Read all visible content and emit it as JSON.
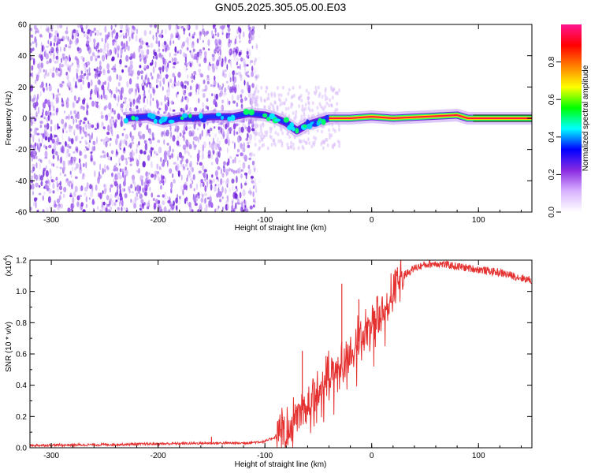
{
  "title": "GN05.2025.305.05.00.E03",
  "chart_data": [
    {
      "type": "heatmap",
      "xlabel": "Height of straight line (km)",
      "ylabel": "Frequency (Hz)",
      "xlim": [
        -320,
        150
      ],
      "ylim": [
        -60,
        60
      ],
      "x_ticks": [
        -300,
        -200,
        -100,
        0,
        100
      ],
      "y_ticks": [
        -60,
        -40,
        -20,
        0,
        20,
        40,
        60
      ],
      "ridge": {
        "x": [
          -230,
          -210,
          -195,
          -180,
          -165,
          -150,
          -130,
          -115,
          -100,
          -90,
          -80,
          -70,
          -60,
          -50,
          -40,
          -20,
          0,
          20,
          50,
          80,
          90,
          100,
          150
        ],
        "y": [
          0,
          1,
          -2,
          0,
          0,
          1,
          1,
          3,
          2,
          0,
          -3,
          -8,
          -4,
          -2,
          0,
          0,
          1,
          0,
          1,
          2,
          0,
          0,
          0
        ]
      },
      "colorbar": {
        "label": "Normalized spectral amplitude",
        "range": [
          0.0,
          1.0
        ],
        "ticks": [
          "0.0",
          "0.2",
          "0.4",
          "0.6",
          "0.8"
        ],
        "colormap": [
          "#ffffff",
          "#d9b3ff",
          "#8a2be2",
          "#0000ff",
          "#00ffff",
          "#00ff00",
          "#ffff00",
          "#ff8000",
          "#ff0000",
          "#ff1493"
        ]
      }
    },
    {
      "type": "line",
      "xlabel": "Height of straight line (km)",
      "ylabel": "SNR (10 * v/v)",
      "y_exponent_label": "(x10",
      "y_exponent_value": "4",
      "y_exponent_close": ")",
      "xlim": [
        -320,
        150
      ],
      "ylim": [
        0.0,
        1.2
      ],
      "x_ticks": [
        -300,
        -200,
        -100,
        0,
        100
      ],
      "y_ticks": [
        "0.0",
        "0.2",
        "0.4",
        "0.6",
        "0.8",
        "1.0",
        "1.2"
      ],
      "color": "#e53030",
      "series": [
        {
          "x": [
            -320,
            -250,
            -200,
            -150,
            -120,
            -100,
            -90,
            -80,
            -70,
            -60,
            -50,
            -40,
            -30,
            -20,
            -10,
            0,
            10,
            20,
            30,
            40,
            50,
            60,
            70,
            80,
            90,
            100,
            120,
            150
          ],
          "y": [
            0.015,
            0.02,
            0.025,
            0.03,
            0.03,
            0.04,
            0.07,
            0.12,
            0.2,
            0.28,
            0.38,
            0.45,
            0.52,
            0.6,
            0.7,
            0.78,
            0.88,
            1.0,
            1.1,
            1.15,
            1.17,
            1.18,
            1.17,
            1.16,
            1.15,
            1.14,
            1.12,
            1.07
          ]
        }
      ],
      "spikes": [
        {
          "x": -65,
          "y": 0.62
        },
        {
          "x": -28,
          "y": 1.05
        },
        {
          "x": -12,
          "y": 0.95
        },
        {
          "x": -150,
          "y": 0.07
        }
      ]
    }
  ]
}
